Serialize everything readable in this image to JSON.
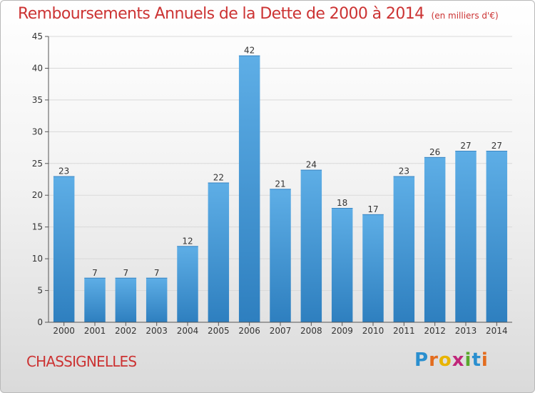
{
  "header": {
    "title": "Remboursements Annuels de la Dette de 2000 à 2014",
    "unit": "(en milliers d'€)"
  },
  "footer": {
    "place": "CHASSIGNELLES",
    "logo_text": "Proxiti",
    "logo_letters": [
      {
        "char": "P",
        "color": "#2a8fcf"
      },
      {
        "char": "r",
        "color": "#e36c1e"
      },
      {
        "char": "o",
        "color": "#e8b400"
      },
      {
        "char": "x",
        "color": "#c0267a"
      },
      {
        "char": "i",
        "color": "#5aa82c"
      },
      {
        "char": "t",
        "color": "#2a8fcf"
      },
      {
        "char": "i",
        "color": "#e36c1e"
      }
    ]
  },
  "colors": {
    "title": "#cc3333",
    "bar_light": "#5eaee6",
    "bar_dark": "#2e7fbf",
    "grid": "#d9d9d9",
    "axis": "#555555",
    "label": "#333333"
  },
  "chart_data": {
    "type": "bar",
    "categories": [
      "2000",
      "2001",
      "2002",
      "2003",
      "2004",
      "2005",
      "2006",
      "2007",
      "2008",
      "2009",
      "2010",
      "2011",
      "2012",
      "2013",
      "2014"
    ],
    "values": [
      23,
      7,
      7,
      7,
      12,
      22,
      42,
      21,
      24,
      18,
      17,
      23,
      26,
      27,
      27
    ],
    "ylim": [
      0,
      45
    ],
    "yticks": [
      0,
      5,
      10,
      15,
      20,
      25,
      30,
      35,
      40,
      45
    ],
    "grid": true,
    "data_labels": true
  }
}
